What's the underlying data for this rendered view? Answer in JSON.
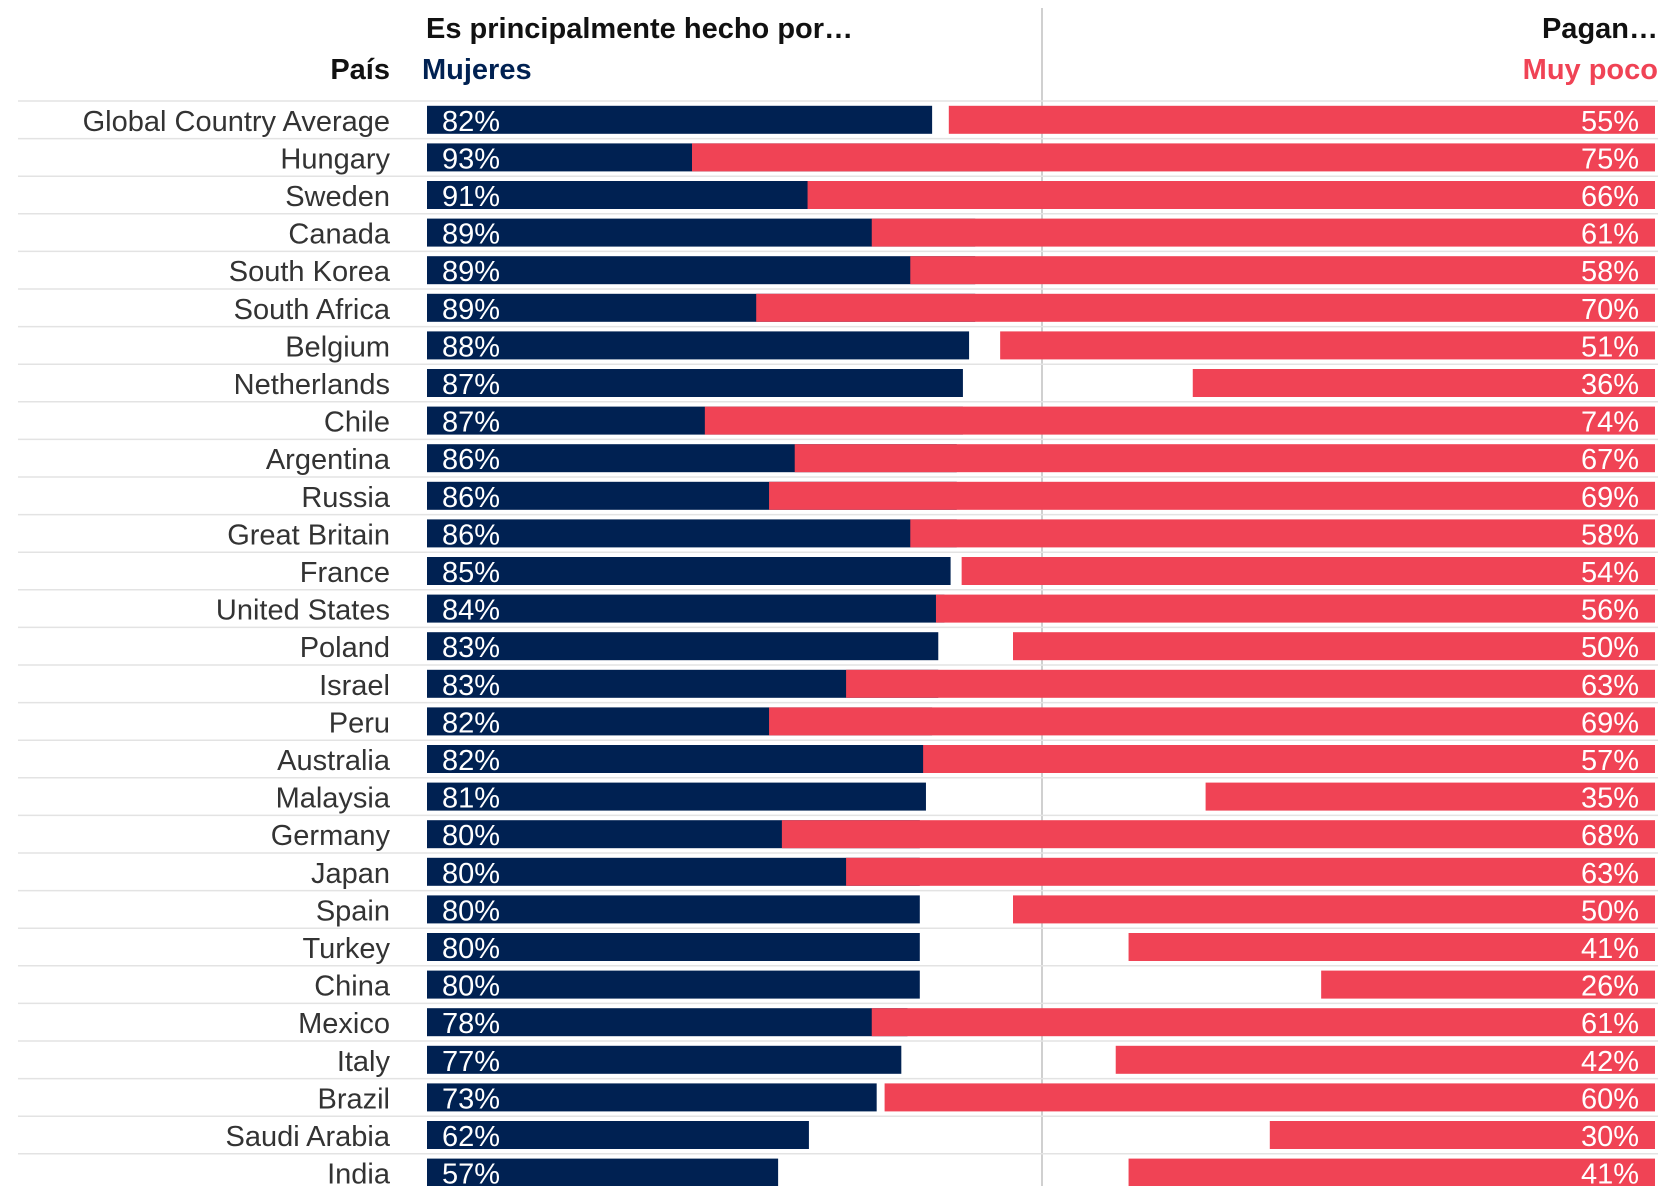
{
  "header": {
    "country_label": "País",
    "left_title": "Es principalmente hecho por…",
    "left_subtitle": "Mujeres",
    "right_title": "Pagan…",
    "right_subtitle": "Muy poco"
  },
  "colors": {
    "left_bar": "#002152",
    "right_bar": "#F04355",
    "text": "#333333",
    "rule": "#e3e3e3",
    "divider": "#d0d0d0"
  },
  "chart_data": {
    "type": "bar",
    "orientation": "horizontal",
    "unit": "%",
    "categories": [
      "Global Country Average",
      "Hungary",
      "Sweden",
      "Canada",
      "South Korea",
      "South Africa",
      "Belgium",
      "Netherlands",
      "Chile",
      "Argentina",
      "Russia",
      "Great Britain",
      "France",
      "United States",
      "Poland",
      "Israel",
      "Peru",
      "Australia",
      "Malaysia",
      "Germany",
      "Japan",
      "Spain",
      "Turkey",
      "China",
      "Mexico",
      "Italy",
      "Brazil",
      "Saudi Arabia",
      "India"
    ],
    "series": [
      {
        "name": "Mujeres",
        "values": [
          82,
          93,
          91,
          89,
          89,
          89,
          88,
          87,
          87,
          86,
          86,
          86,
          85,
          84,
          83,
          83,
          82,
          82,
          81,
          80,
          80,
          80,
          80,
          80,
          78,
          77,
          73,
          62,
          57
        ]
      },
      {
        "name": "Muy poco",
        "values": [
          55,
          75,
          66,
          61,
          58,
          70,
          51,
          36,
          74,
          67,
          69,
          58,
          54,
          56,
          50,
          63,
          69,
          57,
          35,
          68,
          63,
          50,
          41,
          26,
          61,
          42,
          60,
          30,
          41
        ]
      }
    ],
    "xlim": [
      0,
      100
    ]
  }
}
